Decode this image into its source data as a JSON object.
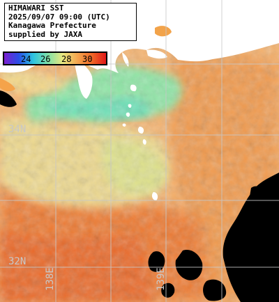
{
  "info": {
    "line1": "HIMAWARI SST",
    "line2": "2025/09/07 09:00 (UTC)",
    "line3": "Kanagawa Prefecture",
    "line4": "supplied by JAXA"
  },
  "legend": {
    "ticks": [
      "24",
      "26",
      "28",
      "30"
    ],
    "colors": [
      "#7b1fd0",
      "#2a4fe6",
      "#2ec4e0",
      "#7fe0a8",
      "#e8e880",
      "#f4a850",
      "#f06a28",
      "#e01818"
    ]
  },
  "grid_labels": {
    "lat_34": "34N",
    "lat_32": "32N",
    "lon_138": "138E",
    "lon_139": "139E"
  },
  "colors": {
    "land": "#ffffff",
    "no_data": "#000000",
    "grid": "#c8c8c8"
  }
}
